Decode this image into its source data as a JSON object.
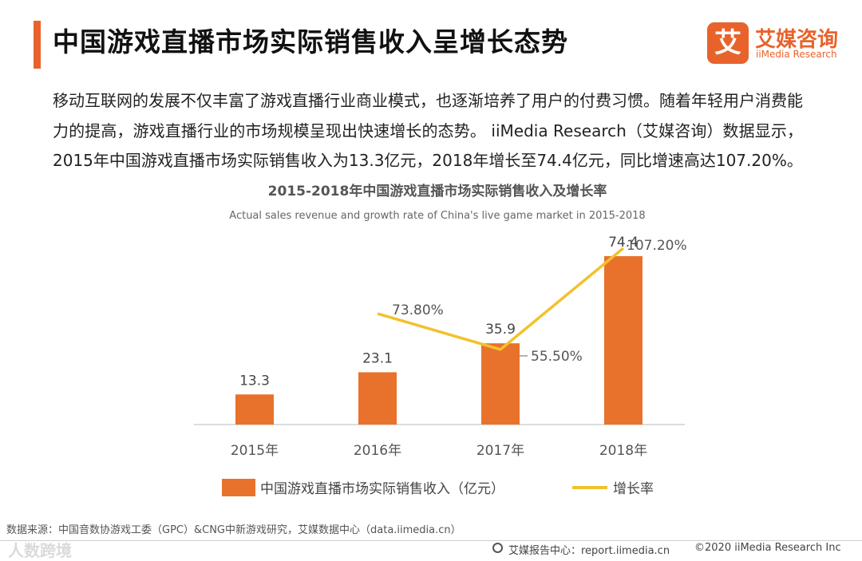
{
  "header": {
    "title": "中国游戏直播市场实际销售收入呈增长态势",
    "logo_mark": "艾",
    "logo_cn": "艾媒咨询",
    "logo_en": "iiMedia Research"
  },
  "intro": "移动互联网的发展不仅丰富了游戏直播行业商业模式，也逐渐培养了用户的付费习惯。随着年轻用户消费能力的提高，游戏直播行业的市场规模呈现出快速增长的态势。 iiMedia Research（艾媒咨询）数据显示，2015年中国游戏直播市场实际销售收入为13.3亿元，2018年增长至74.4亿元，同比增速高达107.20%。",
  "chart_data": {
    "type": "bar",
    "title": "2015-2018年中国游戏直播市场实际销售收入及增长率",
    "subtitle": "Actual sales revenue and growth rate of China's live game market in 2015-2018",
    "categories": [
      "2015年",
      "2016年",
      "2017年",
      "2018年"
    ],
    "series": [
      {
        "name": "中国游戏直播市场实际销售收入（亿元）",
        "kind": "bar",
        "values": [
          13.3,
          23.1,
          35.9,
          74.4
        ],
        "labels": [
          "13.3",
          "23.1",
          "35.9",
          "74.4"
        ],
        "color": "#e8722b"
      },
      {
        "name": "增长率",
        "kind": "line",
        "values": [
          null,
          73.8,
          55.5,
          107.2
        ],
        "labels": [
          null,
          "73.80%",
          "55.50%",
          "107.20%"
        ],
        "color": "#f2c12e"
      }
    ],
    "ylim_bar": [
      0,
      80
    ],
    "ylim_line": [
      0,
      160
    ],
    "grid": false,
    "legend": "bottom"
  },
  "footer": {
    "source": "数据来源：中国音数协游戏工委（GPC）&CNG中新游戏研究，艾媒数据中心（data.iimedia.cn）",
    "report": "艾媒报告中心：report.iimedia.cn",
    "copyright": "©2020  iiMedia Research  Inc",
    "watermark": "人数跨境"
  }
}
